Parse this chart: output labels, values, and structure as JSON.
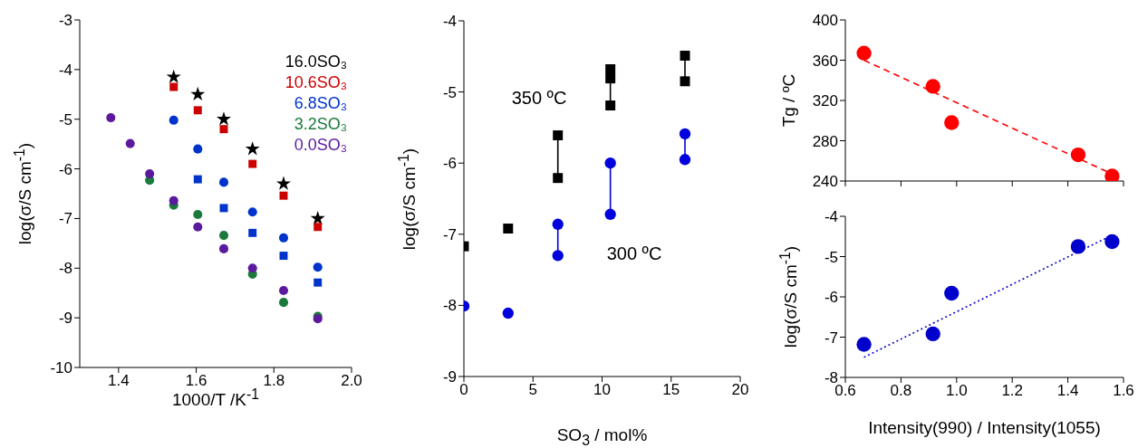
{
  "chart_data": [
    {
      "type": "scatter",
      "xlabel": "1000/T /K$^{-1}$",
      "ylabel": "log(σ/S cm$^{-1}$)",
      "xlim": [
        1.3,
        2.0
      ],
      "xticks": [
        1.4,
        1.6,
        1.8,
        {
          "value": 2,
          "label": "2.0"
        }
      ],
      "ylim": [
        -10,
        -3
      ],
      "yticks": [
        -10,
        -9,
        -8,
        -7,
        -6,
        -5,
        -4,
        -3
      ],
      "legend": "top right",
      "series": [
        {
          "name": "16.0SO₃",
          "color": "#000000",
          "marker": "star",
          "x": [
            1.542,
            1.604,
            1.671,
            1.745,
            1.825,
            1.913
          ],
          "values": [
            -4.15,
            -4.5,
            -5.0,
            -5.6,
            -6.3,
            -7.0
          ]
        },
        {
          "name": "10.6SO₃",
          "color": "#cc0000",
          "marker": "square",
          "x": [
            1.542,
            1.604,
            1.671,
            1.745,
            1.825,
            1.913
          ],
          "values": [
            -4.35,
            -4.82,
            -5.2,
            -5.9,
            -6.54,
            -7.17
          ]
        },
        {
          "name": "6.8SO₃",
          "color": "#0033cc",
          "marker": "circle",
          "x": [
            1.542,
            1.604,
            1.671,
            1.745,
            1.825,
            1.913
          ],
          "values": [
            -5.02,
            -5.6,
            -6.27,
            -6.87,
            -7.39,
            -7.98
          ]
        },
        {
          "name": "3.2SO₃",
          "color": "#1a7a3c",
          "marker": "circle",
          "x": [
            1.48,
            1.542,
            1.604,
            1.671,
            1.745,
            1.825,
            1.913
          ],
          "values": [
            -6.23,
            -6.73,
            -6.92,
            -7.34,
            -8.12,
            -8.69,
            -8.97
          ]
        },
        {
          "name": "0.0SO₃",
          "color": "#5b1a9e",
          "marker": "circle",
          "x": [
            1.38,
            1.43,
            1.48,
            1.542,
            1.604,
            1.671,
            1.745,
            1.825,
            1.913
          ],
          "values": [
            -4.97,
            -5.49,
            -6.1,
            -6.64,
            -7.17,
            -7.61,
            -8.0,
            -8.45,
            -9.02
          ]
        },
        {
          "color": "#0033cc",
          "marker": "square",
          "x": [
            1.604,
            1.671,
            1.745,
            1.825,
            1.913
          ],
          "values": [
            -6.21,
            -6.79,
            -7.29,
            -7.75,
            -8.29
          ]
        }
      ]
    },
    {
      "type": "scatter",
      "xlabel": "SO$_{3}$ / mol%",
      "ylabel": "log(σ/S cm$^{-1}$)",
      "xlim": [
        0,
        20
      ],
      "xticks": [
        0,
        5,
        10,
        15,
        20
      ],
      "ylim": [
        -9,
        -4
      ],
      "yticks": [
        -9,
        -8,
        -7,
        -6,
        -5,
        -4
      ],
      "annotations": [
        "350 ºC",
        "300 ºC"
      ],
      "series": [
        {
          "type": "line",
          "color": "#000000",
          "marker": "none",
          "x": [
            6.8,
            6.8
          ],
          "values": [
            -5.61,
            -6.21
          ]
        },
        {
          "type": "line",
          "color": "#000000",
          "marker": "none",
          "x": [
            10.6,
            10.6
          ],
          "values": [
            -4.68,
            -5.19
          ]
        },
        {
          "type": "line",
          "color": "#000000",
          "marker": "none",
          "x": [
            16,
            16
          ],
          "values": [
            -4.49,
            -4.85
          ]
        },
        {
          "type": "line",
          "color": "#0000dd",
          "marker": "none",
          "x": [
            6.8,
            6.8
          ],
          "values": [
            -6.86,
            -7.3
          ]
        },
        {
          "type": "line",
          "color": "#0000dd",
          "marker": "none",
          "x": [
            10.6,
            10.6
          ],
          "values": [
            -6.0,
            -6.72
          ]
        },
        {
          "type": "line",
          "color": "#0000dd",
          "marker": "none",
          "x": [
            16,
            16
          ],
          "values": [
            -5.59,
            -5.95
          ]
        },
        {
          "color": "#000000",
          "marker": "square",
          "x": [
            0,
            3.2,
            6.8,
            6.8,
            10.6,
            10.6,
            10.6,
            16,
            16
          ],
          "values": [
            -7.17,
            -6.92,
            -5.61,
            -6.21,
            -4.68,
            -4.81,
            -5.19,
            -4.49,
            -4.85
          ]
        },
        {
          "color": "#0000dd",
          "marker": "circle",
          "x": [
            0,
            3.2,
            6.8,
            6.8,
            10.6,
            10.6,
            16,
            16
          ],
          "values": [
            -8.01,
            -8.11,
            -6.86,
            -7.3,
            -6.0,
            -6.72,
            -5.59,
            -5.95
          ]
        }
      ]
    },
    {
      "type": "scatter",
      "ylabel": "Tg / ºC",
      "xlim": [
        0.6,
        1.6
      ],
      "xticks": [
        0.6,
        0.8,
        1,
        1.2,
        1.4,
        1.6
      ],
      "ylim": [
        240,
        400
      ],
      "yticks": [
        240,
        280,
        320,
        360,
        400
      ],
      "tick_labels": "y",
      "series": [
        {
          "color": "#ff0000",
          "marker": "circle",
          "x": [
            0.667,
            0.915,
            0.982,
            1.437,
            1.559
          ],
          "values": [
            367,
            334,
            298,
            266,
            245
          ]
        },
        {
          "type": "line",
          "color": "#ff0000",
          "marker": "none",
          "line_style": "dashed",
          "x": [
            0.667,
            1.559
          ],
          "values": [
            360,
            247
          ]
        }
      ]
    },
    {
      "type": "scatter",
      "xlabel": "Intensity(990) / Intensity(1055)",
      "ylabel": "log(σ/S cm$^{-1}$)",
      "xlim": [
        0.6,
        1.6
      ],
      "xticks": [
        0.6,
        0.8,
        {
          "value": 1,
          "label": "1.0"
        },
        1.2,
        1.4,
        1.6
      ],
      "ylim": [
        -8,
        -4
      ],
      "yticks": [
        -8,
        -7,
        -6,
        -5,
        -4
      ],
      "series": [
        {
          "color": "#0000cc",
          "marker": "circle",
          "x": [
            0.667,
            0.915,
            0.982,
            1.437,
            1.559
          ],
          "values": [
            -7.18,
            -6.92,
            -5.91,
            -4.75,
            -4.63
          ]
        },
        {
          "type": "line",
          "color": "#0000cc",
          "marker": "none",
          "line_style": "dotted",
          "x": [
            0.667,
            1.535
          ],
          "values": [
            -7.5,
            -4.55
          ]
        }
      ]
    }
  ]
}
